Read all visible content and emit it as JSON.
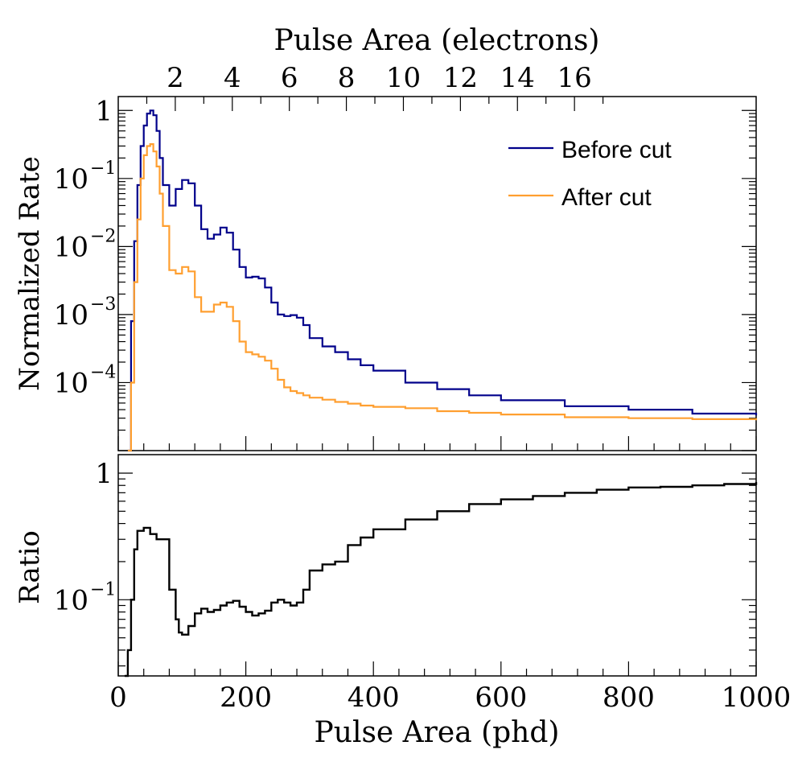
{
  "top_axis": {
    "label": "Pulse Area (electrons)",
    "ticks": [
      2,
      4,
      6,
      8,
      10,
      12,
      14,
      16
    ],
    "tick_labels": [
      "2",
      "4",
      "6",
      "8",
      "10",
      "12",
      "14",
      "16"
    ]
  },
  "legend": {
    "before_label": "Before cut",
    "after_label": "After cut"
  },
  "colors": {
    "before": "#00008b",
    "after": "#ff9f30",
    "ratio": "#000000"
  },
  "chart_data": [
    {
      "type": "line",
      "title": "",
      "xlabel": "Pulse Area (phd)",
      "ylabel": "Normalized Rate",
      "xlim": [
        0,
        1000
      ],
      "ylim": [
        1e-05,
        1.6
      ],
      "yscale": "log",
      "ytick_labels": [
        {
          "mant": "1",
          "exp": ""
        },
        {
          "mant": "10",
          "exp": "−1"
        },
        {
          "mant": "10",
          "exp": "−2"
        },
        {
          "mant": "10",
          "exp": "−3"
        },
        {
          "mant": "10",
          "exp": "−4"
        }
      ],
      "series": [
        {
          "name": "Before cut",
          "x": [
            15,
            20,
            25,
            30,
            35,
            40,
            45,
            50,
            55,
            60,
            65,
            70,
            80,
            90,
            100,
            110,
            120,
            130,
            140,
            150,
            160,
            170,
            180,
            190,
            200,
            210,
            220,
            230,
            240,
            250,
            260,
            270,
            280,
            290,
            300,
            320,
            340,
            360,
            380,
            400,
            450,
            500,
            550,
            600,
            700,
            800,
            900,
            1000
          ],
          "values": [
            1e-05,
            0.0008,
            0.012,
            0.08,
            0.3,
            0.6,
            0.9,
            1.0,
            0.85,
            0.5,
            0.2,
            0.08,
            0.04,
            0.07,
            0.095,
            0.085,
            0.04,
            0.018,
            0.013,
            0.015,
            0.019,
            0.016,
            0.009,
            0.005,
            0.0035,
            0.0036,
            0.0034,
            0.0025,
            0.0015,
            0.001,
            0.00095,
            0.00098,
            0.0009,
            0.0007,
            0.00045,
            0.00034,
            0.00028,
            0.00022,
            0.00018,
            0.00015,
            0.0001,
            8e-05,
            6.5e-05,
            5.5e-05,
            4.5e-05,
            4e-05,
            3.5e-05,
            3.3e-05
          ]
        },
        {
          "name": "After cut",
          "x": [
            15,
            20,
            25,
            30,
            35,
            40,
            45,
            50,
            55,
            60,
            65,
            70,
            80,
            90,
            100,
            110,
            120,
            130,
            140,
            150,
            160,
            170,
            180,
            190,
            200,
            210,
            220,
            230,
            240,
            250,
            260,
            270,
            280,
            290,
            300,
            320,
            340,
            360,
            380,
            400,
            450,
            500,
            550,
            600,
            700,
            800,
            900,
            1000
          ],
          "values": [
            1e-05,
            0.0001,
            0.003,
            0.025,
            0.1,
            0.22,
            0.3,
            0.32,
            0.25,
            0.15,
            0.06,
            0.02,
            0.0045,
            0.004,
            0.005,
            0.0043,
            0.0018,
            0.0011,
            0.0011,
            0.0014,
            0.0015,
            0.0013,
            0.0008,
            0.0004,
            0.00028,
            0.00026,
            0.00024,
            0.00021,
            0.00016,
            0.00011,
            8.5e-05,
            7.5e-05,
            7e-05,
            6.5e-05,
            6e-05,
            5.6e-05,
            5.2e-05,
            4.9e-05,
            4.6e-05,
            4.4e-05,
            4.2e-05,
            3.8e-05,
            3.6e-05,
            3.4e-05,
            3.1e-05,
            3e-05,
            2.9e-05,
            2.8e-05
          ]
        }
      ]
    },
    {
      "type": "line",
      "title": "",
      "xlabel": "Pulse Area (phd)",
      "ylabel": "Ratio",
      "xlim": [
        0,
        1000
      ],
      "ylim": [
        0.025,
        1.4
      ],
      "yscale": "log",
      "xtick_labels": [
        "0",
        "200",
        "400",
        "600",
        "800",
        "1000"
      ],
      "ytick_labels": [
        {
          "mant": "1",
          "exp": ""
        },
        {
          "mant": "10",
          "exp": "−1"
        }
      ],
      "series": [
        {
          "name": "Ratio",
          "x": [
            10,
            15,
            20,
            25,
            30,
            40,
            50,
            60,
            70,
            80,
            90,
            95,
            100,
            110,
            120,
            130,
            140,
            150,
            160,
            170,
            180,
            190,
            200,
            210,
            220,
            230,
            240,
            250,
            260,
            270,
            280,
            290,
            300,
            320,
            340,
            360,
            380,
            400,
            450,
            500,
            550,
            600,
            650,
            700,
            750,
            800,
            850,
            900,
            950,
            1000
          ],
          "values": [
            0.025,
            0.04,
            0.1,
            0.25,
            0.35,
            0.37,
            0.33,
            0.3,
            0.3,
            0.12,
            0.07,
            0.055,
            0.053,
            0.062,
            0.078,
            0.085,
            0.08,
            0.083,
            0.09,
            0.095,
            0.098,
            0.088,
            0.08,
            0.075,
            0.078,
            0.082,
            0.095,
            0.1,
            0.095,
            0.09,
            0.095,
            0.12,
            0.17,
            0.19,
            0.2,
            0.27,
            0.31,
            0.36,
            0.43,
            0.5,
            0.57,
            0.62,
            0.66,
            0.7,
            0.74,
            0.77,
            0.78,
            0.8,
            0.82,
            0.85
          ]
        }
      ]
    }
  ]
}
